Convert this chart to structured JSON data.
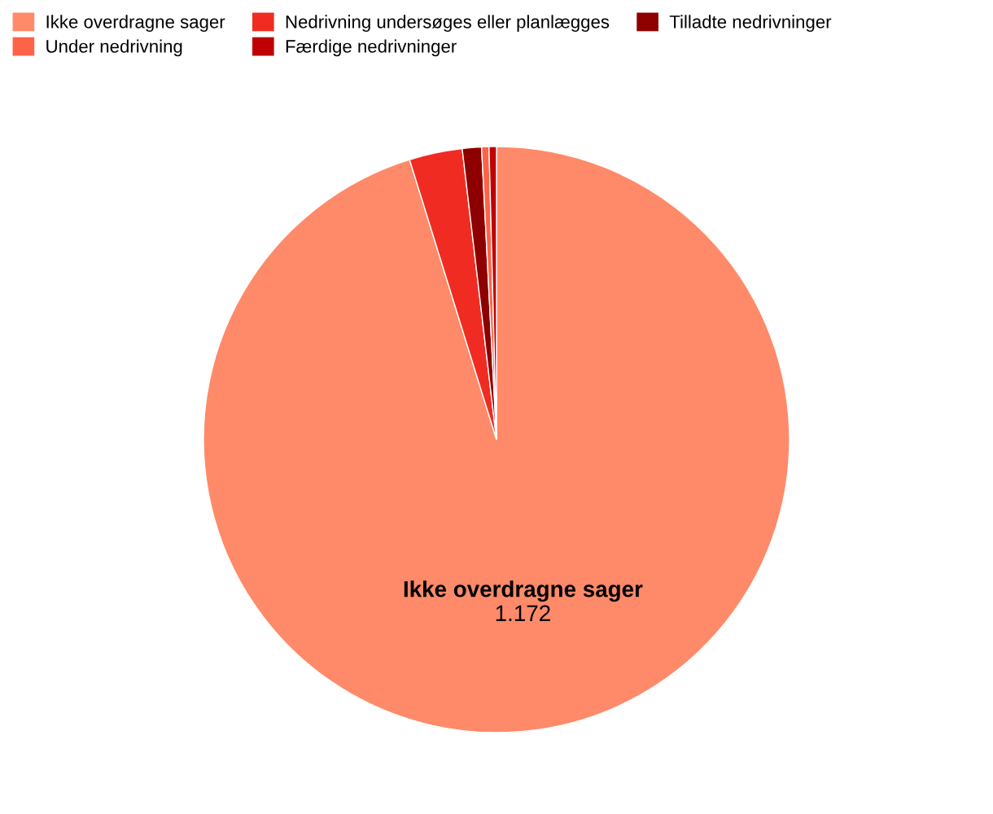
{
  "chart_data": {
    "type": "pie",
    "categories": [
      "Ikke overdragne sager",
      "Nedrivning undersøges eller planlægges",
      "Tilladte nedrivninger",
      "Under nedrivning",
      "Færdige nedrivninger"
    ],
    "values": [
      1172,
      36,
      13,
      5,
      5
    ],
    "colors": [
      "#ff8a69",
      "#f02c22",
      "#8e0000",
      "#ff6347",
      "#c00000"
    ],
    "value_labels": [
      "1.172",
      null,
      null,
      null,
      null
    ],
    "legend": "top left"
  }
}
